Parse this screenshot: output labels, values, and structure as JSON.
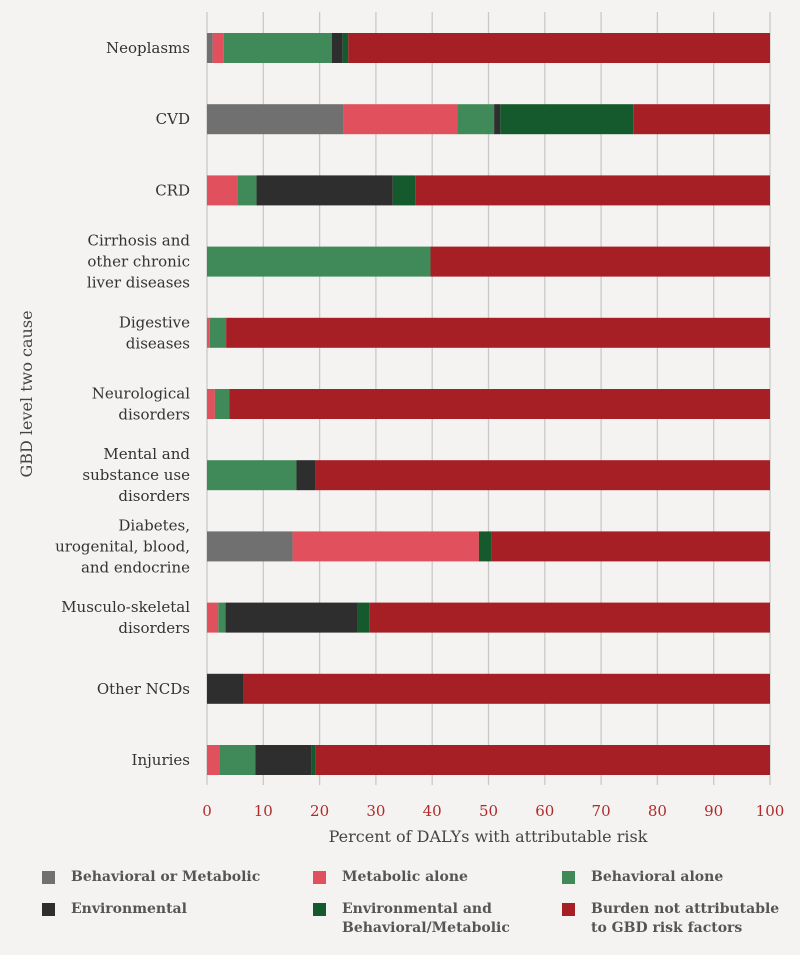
{
  "chart_data": {
    "type": "bar",
    "orientation": "horizontal",
    "stacked": true,
    "xlabel": "Percent of DALYs with attributable risk",
    "ylabel": "GBD level two cause",
    "xlim": [
      0,
      100
    ],
    "xticks": [
      0,
      10,
      20,
      30,
      40,
      50,
      60,
      70,
      80,
      90,
      100
    ],
    "grid": true,
    "categories": [
      "Neoplasms",
      "CVD",
      "CRD",
      "Cirrhosis and\nother chronic\nliver diseases",
      "Digestive\ndiseases",
      "Neurological\ndisorders",
      "Mental and\nsubstance use\ndisorders",
      "Diabetes,\nurogenital, blood,\nand endocrine",
      "Musculo-skeletal\ndisorders",
      "Other NCDs",
      "Injuries"
    ],
    "series": [
      {
        "name": "Behavioral or Metabolic",
        "color": "#707070",
        "values": [
          1.0,
          24.3,
          0,
          0,
          0,
          0,
          0,
          15.2,
          0,
          0,
          0
        ]
      },
      {
        "name": "Metabolic alone",
        "color": "#e0505d",
        "values": [
          2.0,
          20.2,
          5.5,
          0,
          0.5,
          1.4,
          0,
          33.1,
          2.0,
          0,
          2.2
        ]
      },
      {
        "name": "Behavioral alone",
        "color": "#3f8a58",
        "values": [
          19.2,
          6.5,
          3.3,
          39.7,
          2.9,
          2.6,
          15.9,
          0,
          1.3,
          0,
          6.4
        ]
      },
      {
        "name": "Environmental",
        "color": "#2e2e2e",
        "values": [
          1.9,
          1.1,
          24.2,
          0,
          0,
          0,
          3.4,
          0,
          23.5,
          6.5,
          10.0
        ]
      },
      {
        "name": "Environmental and\nBehavioral/Metabolic",
        "color": "#145a2c",
        "values": [
          1.0,
          23.6,
          4.0,
          0,
          0,
          0,
          0,
          2.3,
          2.0,
          0,
          0.6
        ]
      },
      {
        "name": "Burden not attributable\nto GBD risk factors",
        "color": "#a51f24",
        "values": [
          74.9,
          24.3,
          63.0,
          60.3,
          96.6,
          96.0,
          80.7,
          49.4,
          71.2,
          93.5,
          80.8
        ]
      }
    ],
    "legend_position": "bottom"
  }
}
